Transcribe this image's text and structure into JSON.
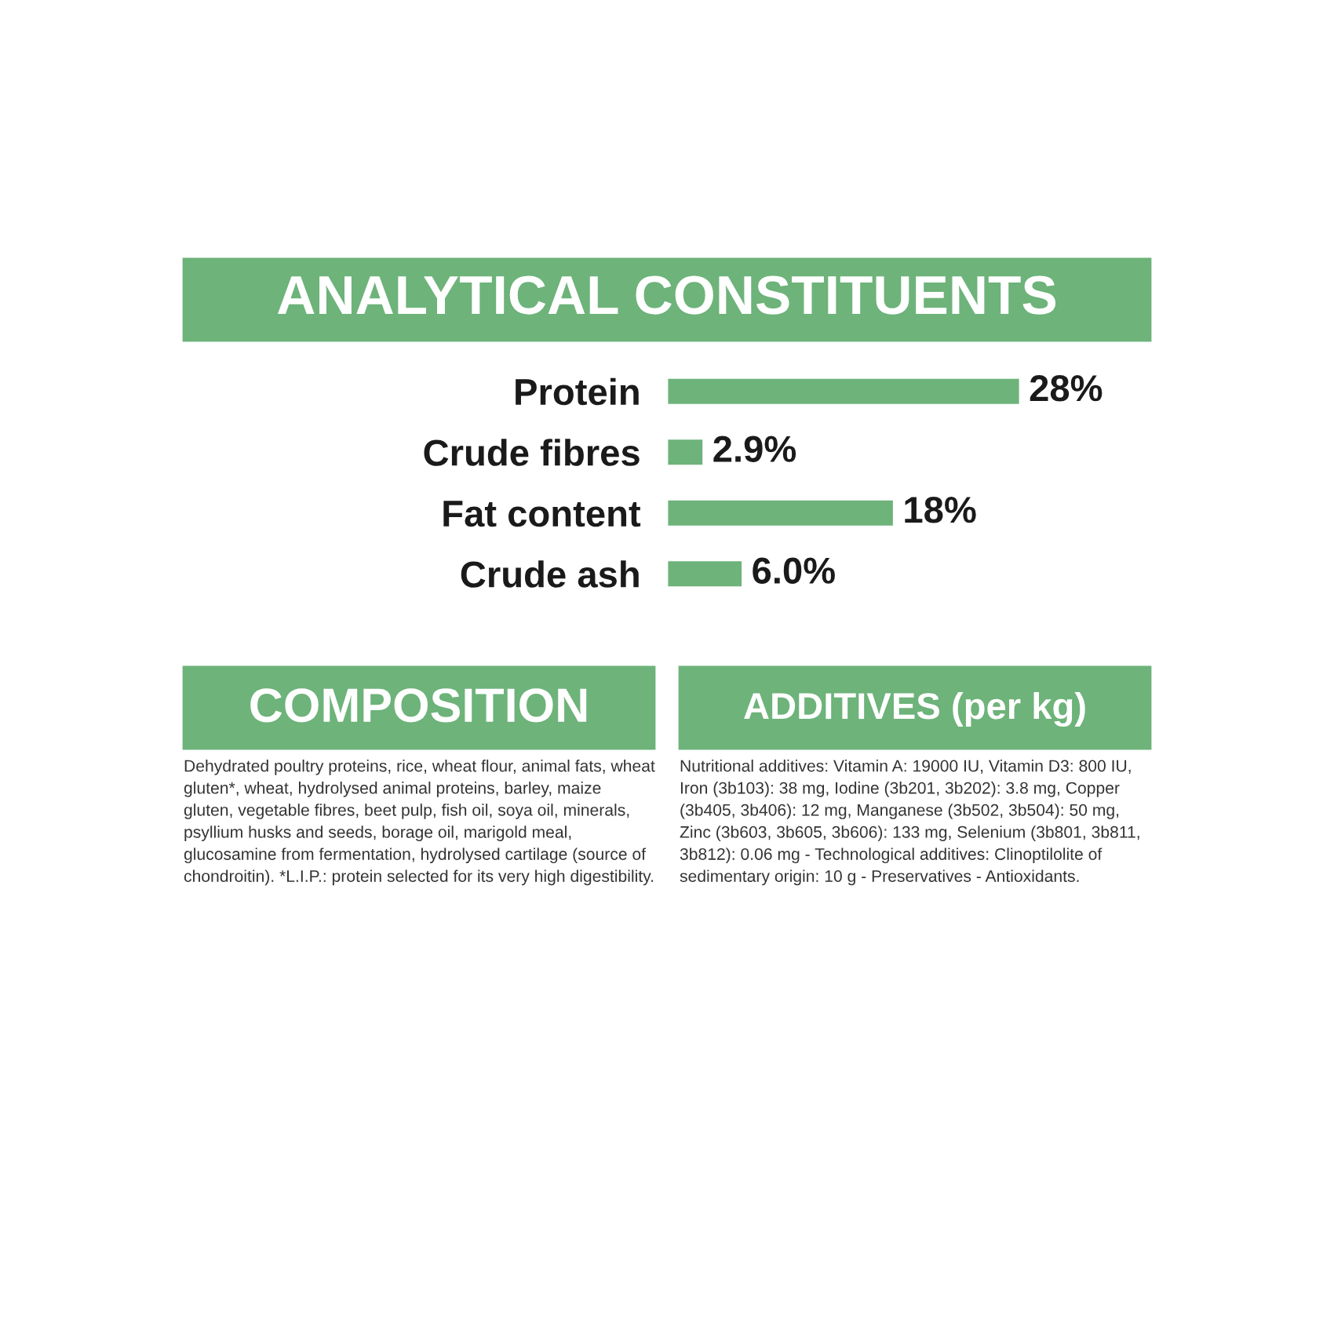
{
  "chart_data": {
    "type": "bar",
    "orientation": "horizontal",
    "title": "ANALYTICAL CONSTITUENTS",
    "categories": [
      "Protein",
      "Crude fibres",
      "Fat content",
      "Crude ash"
    ],
    "values": [
      28,
      2.9,
      18,
      6.0
    ],
    "value_labels": [
      "28%",
      "2.9%",
      "18%",
      "6.0%"
    ],
    "color": "#6db37a",
    "annotations": [
      "COMPOSITION",
      "Dehydrated poultry proteins, rice, wheat flour, animal fats, wheat gluten*, wheat, hydrolysed animal proteins, barley, maize gluten, vegetable fibres, beet pulp, fish oil, soya oil, minerals, psyllium husks and seeds, borage oil, marigold meal, glucosamine from fermentation, hydrolysed cartilage (source of chondroitin). *L.I.P.: protein selected for its very high digestibility.",
      "ADDITIVES (per kg)",
      "Nutritional additives: Vitamin A: 19000 IU, Vitamin D3: 800 IU, Iron (3b103): 38 mg, Iodine (3b201, 3b202): 3.8 mg, Copper (3b405, 3b406): 12 mg, Manganese (3b502, 3b504): 50 mg, Zinc (3b603, 3b605, 3b606): 133 mg, Selenium (3b801, 3b811, 3b812): 0.06 mg - Technological additives: Clinoptilolite of sedimentary origin: 10 g - Preservatives - Antioxidants."
    ]
  }
}
